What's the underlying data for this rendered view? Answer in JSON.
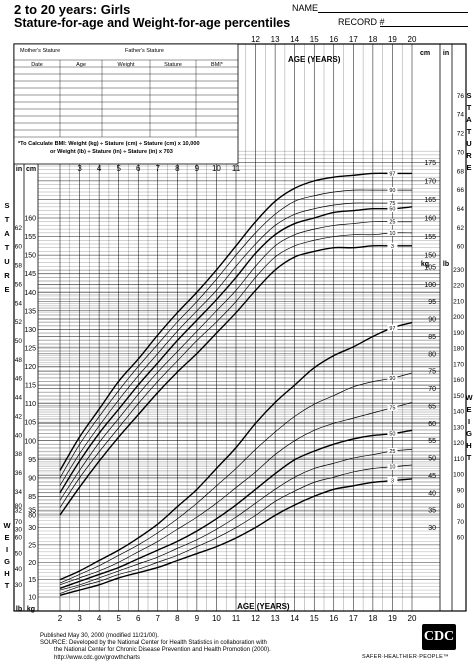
{
  "header": {
    "title": "2 to 20 years: Girls",
    "subtitle": "Stature-for-age and Weight-for-age percentiles",
    "name_label": "NAME",
    "record_label": "RECORD #"
  },
  "form": {
    "mother_stature": "Mother's Stature",
    "father_stature": "Father's Stature",
    "columns": [
      "Date",
      "Age",
      "Weight",
      "Stature",
      "BMI*"
    ],
    "bmi_note_1": "*To Calculate BMI: Weight (kg) ÷ Stature (cm) ÷ Stature (cm) x 10,000",
    "bmi_note_2": "or Weight (lb) ÷ Stature (in) ÷ Stature (in) x 703"
  },
  "footer": {
    "published": "Published May 30, 2000 (modified 11/21/00).",
    "source_1": "SOURCE: Developed by the National Center for Health Statistics in collaboration with",
    "source_2": "the National Center for Chronic Disease Prevention and Health Promotion (2000).",
    "url": "http://www.cdc.gov/growthcharts",
    "logo_text": "CDC",
    "tagline": "SAFER·HEALTHIER·PEOPLE™"
  },
  "chart_data": {
    "type": "line",
    "x_axis_label": "AGE (YEARS)",
    "x_ticks": [
      2,
      3,
      4,
      5,
      6,
      7,
      8,
      9,
      10,
      11,
      12,
      13,
      14,
      15,
      16,
      17,
      18,
      19,
      20
    ],
    "xlim": [
      2,
      20
    ],
    "unit_labels": {
      "cm": "cm",
      "in": "in",
      "kg": "kg",
      "lb": "lb"
    },
    "side_labels": {
      "stature": "STATURE",
      "weight": "WEIGHT"
    },
    "stature": {
      "unit": "cm",
      "ylim": [
        80,
        178
      ],
      "cm_ticks_left": [
        80,
        85,
        90,
        95,
        100,
        105,
        110,
        115,
        120,
        125,
        130,
        135,
        140,
        145,
        150,
        155,
        160
      ],
      "cm_ticks_right": [
        150,
        155,
        160,
        165,
        170,
        175
      ],
      "in_ticks_left": [
        30,
        32,
        34,
        36,
        38,
        40,
        42,
        44,
        46,
        48,
        50,
        52,
        54,
        56,
        58,
        60,
        62
      ],
      "in_ticks_right": [
        60,
        62,
        64,
        66,
        68,
        70,
        72,
        74,
        76
      ],
      "ages": [
        2,
        3,
        4,
        5,
        6,
        7,
        8,
        9,
        10,
        11,
        12,
        13,
        14,
        15,
        16,
        17,
        18,
        19,
        20
      ],
      "series": [
        {
          "name": "97",
          "values": [
            92,
            101,
            108.5,
            116,
            122,
            128.5,
            134.5,
            140,
            146,
            152.5,
            159,
            164.5,
            168,
            170,
            171,
            171.5,
            172,
            172,
            172
          ]
        },
        {
          "name": "90",
          "values": [
            90,
            99,
            106.5,
            113.5,
            120,
            126,
            132,
            137.5,
            143.5,
            150,
            156,
            161,
            164.5,
            166,
            167,
            167.5,
            167.5,
            167.5,
            167.5
          ]
        },
        {
          "name": "75",
          "values": [
            88,
            96.5,
            104,
            111,
            117.5,
            123.5,
            129.5,
            135,
            140.5,
            147,
            153,
            158,
            161,
            162.5,
            163.5,
            164,
            164,
            164,
            164
          ]
        },
        {
          "name": "50",
          "values": [
            86,
            94.5,
            102,
            108.5,
            115,
            121,
            127,
            132.5,
            138,
            144,
            150.5,
            155.5,
            158.5,
            160,
            161.5,
            162,
            162.5,
            162.5,
            163
          ]
        },
        {
          "name": "25",
          "values": [
            84,
            92,
            99.5,
            106,
            112.5,
            118.5,
            124,
            129.5,
            135,
            140.5,
            147,
            152.5,
            155.5,
            157,
            158,
            158.5,
            159,
            159,
            159
          ]
        },
        {
          "name": "10",
          "values": [
            82,
            90,
            97,
            103.5,
            110,
            116,
            121.5,
            127,
            132,
            137.5,
            144,
            149.5,
            152.5,
            154,
            155,
            155.5,
            155.5,
            156,
            156
          ]
        },
        {
          "name": "3",
          "values": [
            80,
            87.5,
            94.5,
            101,
            107,
            113,
            118.5,
            123.5,
            129,
            134.5,
            140.5,
            146,
            149.5,
            151,
            152,
            152,
            152.5,
            152.5,
            152.5
          ]
        }
      ]
    },
    "weight": {
      "unit": "kg",
      "ylim": [
        10,
        105
      ],
      "kg_ticks_left": [
        10,
        15,
        20,
        25,
        30,
        35
      ],
      "kg_ticks_right": [
        30,
        35,
        40,
        45,
        50,
        55,
        60,
        65,
        70,
        75,
        80,
        85,
        90,
        95,
        100,
        105
      ],
      "lb_ticks_left": [
        30,
        40,
        50,
        60,
        70,
        80
      ],
      "lb_ticks_right": [
        60,
        70,
        80,
        90,
        100,
        110,
        120,
        130,
        140,
        150,
        160,
        170,
        180,
        190,
        200,
        210,
        220,
        230
      ],
      "ages": [
        2,
        3,
        4,
        5,
        6,
        7,
        8,
        9,
        10,
        11,
        12,
        13,
        14,
        15,
        16,
        17,
        18,
        19,
        20
      ],
      "series": [
        {
          "name": "97",
          "values": [
            15,
            17.5,
            20.5,
            23.5,
            27,
            31,
            36,
            41,
            47,
            53,
            60,
            66,
            71,
            76,
            79.5,
            82,
            85,
            87.5,
            89
          ]
        },
        {
          "name": "90",
          "values": [
            14,
            16.5,
            19,
            22,
            25,
            28.5,
            32.5,
            37,
            42,
            47,
            52.5,
            57.5,
            62,
            65.5,
            68,
            70.5,
            72,
            73,
            74.5
          ]
        },
        {
          "name": "75",
          "values": [
            13.5,
            15.5,
            17.5,
            20,
            23,
            26,
            29.5,
            33,
            37,
            41.5,
            46,
            51,
            55,
            58,
            60,
            61.5,
            63,
            64.5,
            66
          ]
        },
        {
          "name": "50",
          "values": [
            12.5,
            14.5,
            16.5,
            18.5,
            21,
            23.5,
            26,
            29,
            32.5,
            36.5,
            41,
            45.5,
            49.5,
            52,
            54,
            55.5,
            56.5,
            57,
            58
          ]
        },
        {
          "name": "25",
          "values": [
            12,
            13.5,
            15.5,
            17.5,
            19.5,
            21.5,
            24,
            26.5,
            29.5,
            33,
            37,
            41,
            44.5,
            47,
            48.5,
            50,
            51,
            52,
            52.5
          ]
        },
        {
          "name": "10",
          "values": [
            11,
            13,
            14.5,
            16.5,
            18,
            20,
            22,
            24.5,
            27,
            30,
            33.5,
            37.5,
            40.5,
            43,
            44.5,
            46,
            47,
            47.5,
            48
          ]
        },
        {
          "name": "3",
          "values": [
            10.5,
            12,
            13.5,
            15.5,
            17,
            18.5,
            20.5,
            22.5,
            24.5,
            27,
            30,
            33.5,
            36.5,
            39,
            41,
            42,
            43,
            43.5,
            44
          ]
        }
      ]
    }
  }
}
